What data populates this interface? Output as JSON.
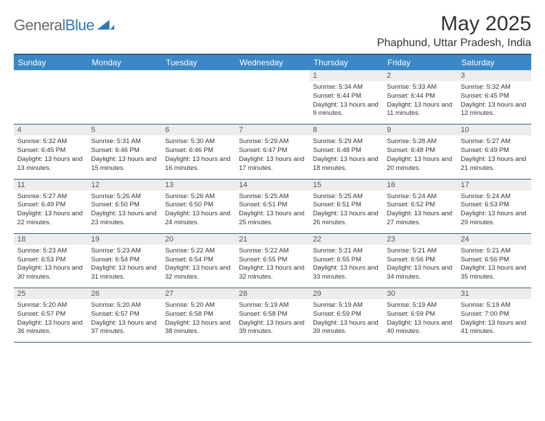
{
  "logo": {
    "text1": "General",
    "text2": "Blue"
  },
  "title": "May 2025",
  "location": "Phaphund, Uttar Pradesh, India",
  "colors": {
    "header_bg": "#3c87c7",
    "header_border": "#2d5f8a",
    "daynum_bg": "#ededed",
    "text": "#333333",
    "logo_gray": "#6a6a6a",
    "logo_blue": "#2f78b7"
  },
  "dayNames": [
    "Sunday",
    "Monday",
    "Tuesday",
    "Wednesday",
    "Thursday",
    "Friday",
    "Saturday"
  ],
  "weeks": [
    [
      null,
      null,
      null,
      null,
      {
        "n": "1",
        "sr": "5:34 AM",
        "ss": "6:44 PM",
        "dl": "13 hours and 9 minutes."
      },
      {
        "n": "2",
        "sr": "5:33 AM",
        "ss": "6:44 PM",
        "dl": "13 hours and 11 minutes."
      },
      {
        "n": "3",
        "sr": "5:32 AM",
        "ss": "6:45 PM",
        "dl": "13 hours and 12 minutes."
      }
    ],
    [
      {
        "n": "4",
        "sr": "5:32 AM",
        "ss": "6:45 PM",
        "dl": "13 hours and 13 minutes."
      },
      {
        "n": "5",
        "sr": "5:31 AM",
        "ss": "6:46 PM",
        "dl": "13 hours and 15 minutes."
      },
      {
        "n": "6",
        "sr": "5:30 AM",
        "ss": "6:46 PM",
        "dl": "13 hours and 16 minutes."
      },
      {
        "n": "7",
        "sr": "5:29 AM",
        "ss": "6:47 PM",
        "dl": "13 hours and 17 minutes."
      },
      {
        "n": "8",
        "sr": "5:29 AM",
        "ss": "6:48 PM",
        "dl": "13 hours and 18 minutes."
      },
      {
        "n": "9",
        "sr": "5:28 AM",
        "ss": "6:48 PM",
        "dl": "13 hours and 20 minutes."
      },
      {
        "n": "10",
        "sr": "5:27 AM",
        "ss": "6:49 PM",
        "dl": "13 hours and 21 minutes."
      }
    ],
    [
      {
        "n": "11",
        "sr": "5:27 AM",
        "ss": "6:49 PM",
        "dl": "13 hours and 22 minutes."
      },
      {
        "n": "12",
        "sr": "5:26 AM",
        "ss": "6:50 PM",
        "dl": "13 hours and 23 minutes."
      },
      {
        "n": "13",
        "sr": "5:26 AM",
        "ss": "6:50 PM",
        "dl": "13 hours and 24 minutes."
      },
      {
        "n": "14",
        "sr": "5:25 AM",
        "ss": "6:51 PM",
        "dl": "13 hours and 25 minutes."
      },
      {
        "n": "15",
        "sr": "5:25 AM",
        "ss": "6:51 PM",
        "dl": "13 hours and 26 minutes."
      },
      {
        "n": "16",
        "sr": "5:24 AM",
        "ss": "6:52 PM",
        "dl": "13 hours and 27 minutes."
      },
      {
        "n": "17",
        "sr": "5:24 AM",
        "ss": "6:53 PM",
        "dl": "13 hours and 29 minutes."
      }
    ],
    [
      {
        "n": "18",
        "sr": "5:23 AM",
        "ss": "6:53 PM",
        "dl": "13 hours and 30 minutes."
      },
      {
        "n": "19",
        "sr": "5:23 AM",
        "ss": "6:54 PM",
        "dl": "13 hours and 31 minutes."
      },
      {
        "n": "20",
        "sr": "5:22 AM",
        "ss": "6:54 PM",
        "dl": "13 hours and 32 minutes."
      },
      {
        "n": "21",
        "sr": "5:22 AM",
        "ss": "6:55 PM",
        "dl": "13 hours and 32 minutes."
      },
      {
        "n": "22",
        "sr": "5:21 AM",
        "ss": "6:55 PM",
        "dl": "13 hours and 33 minutes."
      },
      {
        "n": "23",
        "sr": "5:21 AM",
        "ss": "6:56 PM",
        "dl": "13 hours and 34 minutes."
      },
      {
        "n": "24",
        "sr": "5:21 AM",
        "ss": "6:56 PM",
        "dl": "13 hours and 35 minutes."
      }
    ],
    [
      {
        "n": "25",
        "sr": "5:20 AM",
        "ss": "6:57 PM",
        "dl": "13 hours and 36 minutes."
      },
      {
        "n": "26",
        "sr": "5:20 AM",
        "ss": "6:57 PM",
        "dl": "13 hours and 37 minutes."
      },
      {
        "n": "27",
        "sr": "5:20 AM",
        "ss": "6:58 PM",
        "dl": "13 hours and 38 minutes."
      },
      {
        "n": "28",
        "sr": "5:19 AM",
        "ss": "6:58 PM",
        "dl": "13 hours and 39 minutes."
      },
      {
        "n": "29",
        "sr": "5:19 AM",
        "ss": "6:59 PM",
        "dl": "13 hours and 39 minutes."
      },
      {
        "n": "30",
        "sr": "5:19 AM",
        "ss": "6:59 PM",
        "dl": "13 hours and 40 minutes."
      },
      {
        "n": "31",
        "sr": "5:19 AM",
        "ss": "7:00 PM",
        "dl": "13 hours and 41 minutes."
      }
    ]
  ],
  "labels": {
    "sunrise": "Sunrise:",
    "sunset": "Sunset:",
    "daylight": "Daylight:"
  }
}
